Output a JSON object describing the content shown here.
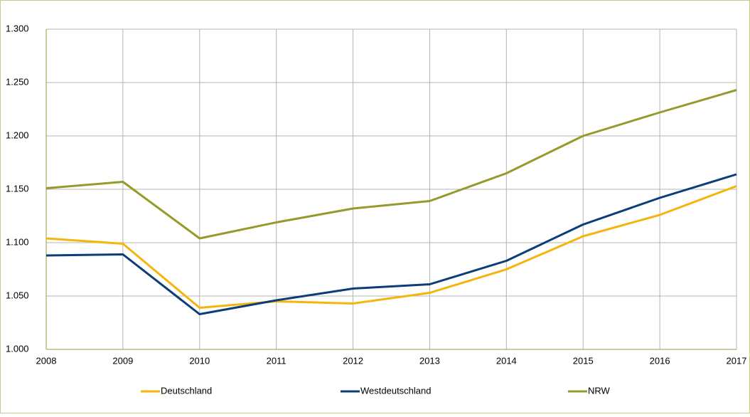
{
  "chart_data": {
    "type": "line",
    "categories": [
      "2008",
      "2009",
      "2010",
      "2011",
      "2012",
      "2013",
      "2014",
      "2015",
      "2016",
      "2017"
    ],
    "series": [
      {
        "name": "Deutschland",
        "color": "#f6b50e",
        "values": [
          1104,
          1099,
          1039,
          1045,
          1043,
          1053,
          1075,
          1106,
          1126,
          1153
        ]
      },
      {
        "name": "Westdeutschland",
        "color": "#0d3d78",
        "values": [
          1088,
          1089,
          1033,
          1046,
          1057,
          1061,
          1083,
          1117,
          1142,
          1164
        ]
      },
      {
        "name": "NRW",
        "color": "#969a2b",
        "values": [
          1151,
          1157,
          1104,
          1119,
          1132,
          1139,
          1165,
          1200,
          1222,
          1243
        ]
      }
    ],
    "ylim": [
      1000,
      1300
    ],
    "yticks": [
      {
        "value": 1000,
        "label": "1.000"
      },
      {
        "value": 1050,
        "label": "1.050"
      },
      {
        "value": 1100,
        "label": "1.100"
      },
      {
        "value": 1150,
        "label": "1.150"
      },
      {
        "value": 1200,
        "label": "1.200"
      },
      {
        "value": 1250,
        "label": "1.250"
      },
      {
        "value": 1300,
        "label": "1.300"
      }
    ],
    "grid": true,
    "legend": "bottom"
  }
}
